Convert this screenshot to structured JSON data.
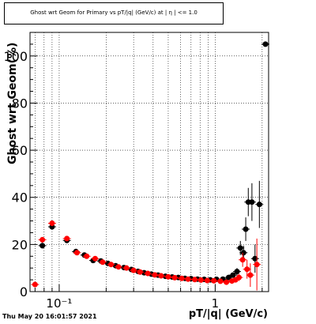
{
  "chart_data": {
    "type": "scatter",
    "title": "Ghost wrt Geom for Primary vs pT/|q| (GeV/c) at | η | <= 1.0",
    "xlabel": "pT/|q| (GeV/c)",
    "ylabel": "Ghost wrt Geom(%)",
    "xscale": "log",
    "xlim": [
      0.065,
      2.2
    ],
    "ylim": [
      0,
      110
    ],
    "grid": true,
    "x_ticklabels": [
      {
        "x": 0.1,
        "label": "10⁻¹"
      },
      {
        "x": 1,
        "label": "1"
      }
    ],
    "y_ticks": [
      0,
      20,
      40,
      60,
      80,
      100
    ],
    "y_ticklabels": [
      "0",
      "20",
      "40",
      "60",
      "80",
      "100"
    ],
    "timestamp": "Thu May 20 16:01:57 2021",
    "series": [
      {
        "color": "#000000",
        "points": [
          {
            "x": 0.078,
            "y": 19.5,
            "err": 1.2
          },
          {
            "x": 0.09,
            "y": 27.5,
            "err": 1.2
          },
          {
            "x": 0.112,
            "y": 21.7,
            "err": 1.0
          },
          {
            "x": 0.128,
            "y": 17.0,
            "err": 0.8
          },
          {
            "x": 0.145,
            "y": 15.5,
            "err": 0.6
          },
          {
            "x": 0.165,
            "y": 13.2,
            "err": 0.5
          },
          {
            "x": 0.185,
            "y": 13.0,
            "err": 0.5
          },
          {
            "x": 0.205,
            "y": 12.0,
            "err": 0.5
          },
          {
            "x": 0.23,
            "y": 11.0,
            "err": 0.5
          },
          {
            "x": 0.26,
            "y": 10.2,
            "err": 0.4
          },
          {
            "x": 0.29,
            "y": 9.4,
            "err": 0.4
          },
          {
            "x": 0.32,
            "y": 8.6,
            "err": 0.4
          },
          {
            "x": 0.35,
            "y": 8.0,
            "err": 0.4
          },
          {
            "x": 0.39,
            "y": 7.4,
            "err": 0.4
          },
          {
            "x": 0.43,
            "y": 7.0,
            "err": 0.4
          },
          {
            "x": 0.48,
            "y": 6.5,
            "err": 0.4
          },
          {
            "x": 0.53,
            "y": 6.2,
            "err": 0.4
          },
          {
            "x": 0.58,
            "y": 6.0,
            "err": 0.4
          },
          {
            "x": 0.64,
            "y": 5.6,
            "err": 0.4
          },
          {
            "x": 0.7,
            "y": 5.5,
            "err": 0.4
          },
          {
            "x": 0.77,
            "y": 5.3,
            "err": 0.4
          },
          {
            "x": 0.85,
            "y": 5.2,
            "err": 0.4
          },
          {
            "x": 0.93,
            "y": 5.0,
            "err": 0.5
          },
          {
            "x": 1.02,
            "y": 5.2,
            "err": 0.6
          },
          {
            "x": 1.12,
            "y": 5.3,
            "err": 0.6
          },
          {
            "x": 1.22,
            "y": 6.0,
            "err": 0.8
          },
          {
            "x": 1.3,
            "y": 7.0,
            "err": 1.0
          },
          {
            "x": 1.38,
            "y": 8.5,
            "err": 1.5
          },
          {
            "x": 1.45,
            "y": 18.5,
            "err": 3.0
          },
          {
            "x": 1.52,
            "y": 16.5,
            "err": 3.0
          },
          {
            "x": 1.57,
            "y": 26.5,
            "err": 5.0
          },
          {
            "x": 1.63,
            "y": 38.0,
            "err": 6.0
          },
          {
            "x": 1.72,
            "y": 38.0,
            "err": 8.0
          },
          {
            "x": 1.8,
            "y": 14.0,
            "err": 6.0
          },
          {
            "x": 1.92,
            "y": 37.0,
            "err": 10.0
          },
          {
            "x": 2.1,
            "y": 105.0,
            "err": 0.5
          }
        ]
      },
      {
        "color": "#ff0000",
        "points": [
          {
            "x": 0.07,
            "y": 3.0,
            "err": 0.8
          },
          {
            "x": 0.078,
            "y": 22.0,
            "err": 1.2
          },
          {
            "x": 0.09,
            "y": 29.0,
            "err": 1.2
          },
          {
            "x": 0.112,
            "y": 22.5,
            "err": 1.0
          },
          {
            "x": 0.13,
            "y": 16.5,
            "err": 0.8
          },
          {
            "x": 0.15,
            "y": 15.0,
            "err": 0.6
          },
          {
            "x": 0.17,
            "y": 14.0,
            "err": 0.5
          },
          {
            "x": 0.19,
            "y": 12.5,
            "err": 0.5
          },
          {
            "x": 0.215,
            "y": 11.5,
            "err": 0.5
          },
          {
            "x": 0.24,
            "y": 10.5,
            "err": 0.5
          },
          {
            "x": 0.27,
            "y": 10.0,
            "err": 0.4
          },
          {
            "x": 0.3,
            "y": 9.0,
            "err": 0.4
          },
          {
            "x": 0.33,
            "y": 8.3,
            "err": 0.4
          },
          {
            "x": 0.37,
            "y": 7.7,
            "err": 0.4
          },
          {
            "x": 0.41,
            "y": 7.1,
            "err": 0.4
          },
          {
            "x": 0.45,
            "y": 6.7,
            "err": 0.4
          },
          {
            "x": 0.5,
            "y": 6.3,
            "err": 0.4
          },
          {
            "x": 0.55,
            "y": 5.9,
            "err": 0.4
          },
          {
            "x": 0.61,
            "y": 5.6,
            "err": 0.4
          },
          {
            "x": 0.67,
            "y": 5.3,
            "err": 0.4
          },
          {
            "x": 0.74,
            "y": 5.1,
            "err": 0.4
          },
          {
            "x": 0.81,
            "y": 4.9,
            "err": 0.4
          },
          {
            "x": 0.89,
            "y": 4.7,
            "err": 0.5
          },
          {
            "x": 0.98,
            "y": 4.6,
            "err": 0.5
          },
          {
            "x": 1.08,
            "y": 4.4,
            "err": 0.6
          },
          {
            "x": 1.18,
            "y": 4.0,
            "err": 0.7
          },
          {
            "x": 1.28,
            "y": 4.5,
            "err": 0.8
          },
          {
            "x": 1.35,
            "y": 5.0,
            "err": 1.0
          },
          {
            "x": 1.42,
            "y": 6.0,
            "err": 1.5
          },
          {
            "x": 1.5,
            "y": 13.5,
            "err": 3.0
          },
          {
            "x": 1.6,
            "y": 9.5,
            "err": 4.0
          },
          {
            "x": 1.68,
            "y": 7.0,
            "err": 5.0
          },
          {
            "x": 1.85,
            "y": 11.5,
            "err": 11.0
          }
        ]
      }
    ]
  }
}
